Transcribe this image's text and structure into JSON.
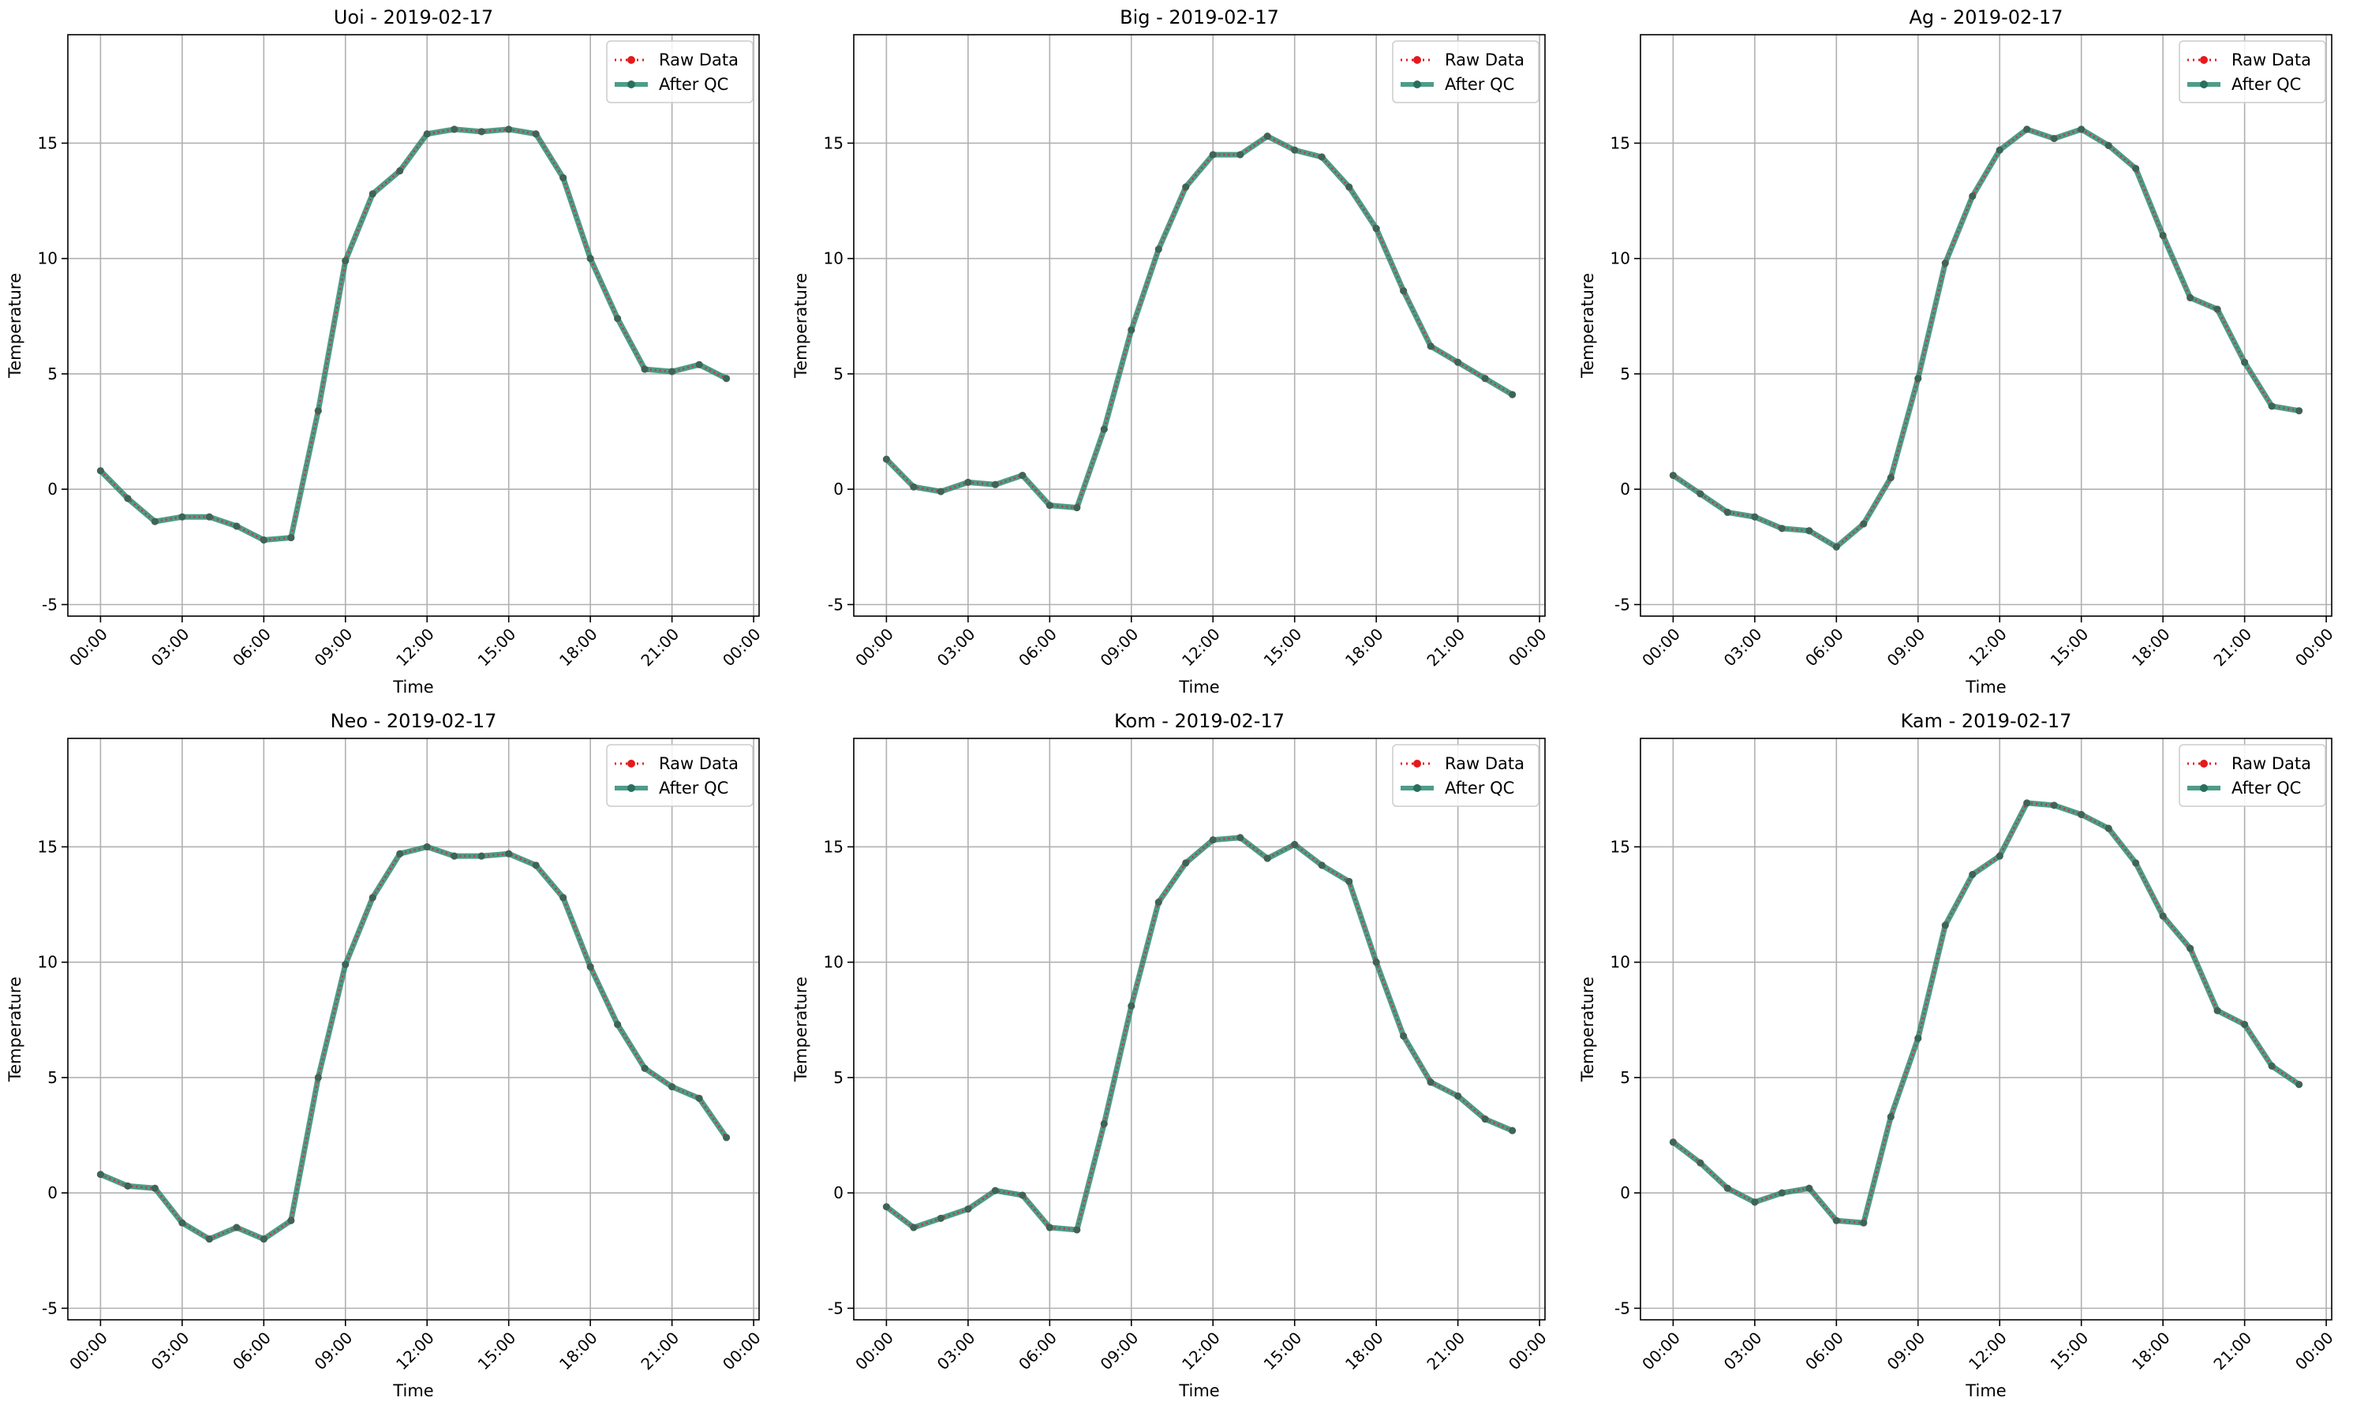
{
  "colors": {
    "raw": "#e41a1c",
    "qc": "#2e8b74",
    "grid": "#b0b0b0",
    "frame": "#000000"
  },
  "legend": {
    "raw_label": "Raw Data",
    "qc_label": "After QC",
    "position": "top-right"
  },
  "chart_data": [
    {
      "type": "line",
      "title": "Uoi - 2019-02-17",
      "xlabel": "Time",
      "ylabel": "Temperature",
      "x_ticks": [
        "00:00",
        "03:00",
        "06:00",
        "09:00",
        "12:00",
        "15:00",
        "18:00",
        "21:00",
        "00:00"
      ],
      "x_range_hours": [
        -1.2,
        24.2
      ],
      "ylim": [
        -5.5,
        19.7
      ],
      "y_ticks": [
        -5,
        0,
        5,
        10,
        15
      ],
      "grid": true,
      "x_hours": [
        0,
        1,
        2,
        3,
        4,
        5,
        6,
        7,
        8,
        9,
        10,
        11,
        12,
        13,
        14,
        15,
        16,
        17,
        18,
        19,
        20,
        21,
        22,
        23
      ],
      "series": [
        {
          "name": "Raw Data",
          "values": [
            0.8,
            -0.4,
            -1.4,
            -1.2,
            -1.2,
            -1.6,
            -2.2,
            -2.1,
            3.4,
            9.9,
            12.8,
            13.8,
            15.4,
            15.6,
            15.5,
            15.6,
            15.4,
            13.5,
            10.0,
            7.4,
            5.2,
            5.1,
            5.4,
            4.8
          ]
        },
        {
          "name": "After QC",
          "values": [
            0.8,
            -0.4,
            -1.4,
            -1.2,
            -1.2,
            -1.6,
            -2.2,
            -2.1,
            3.4,
            9.9,
            12.8,
            13.8,
            15.4,
            15.6,
            15.5,
            15.6,
            15.4,
            13.5,
            10.0,
            7.4,
            5.2,
            5.1,
            5.4,
            4.8
          ]
        }
      ]
    },
    {
      "type": "line",
      "title": "Big - 2019-02-17",
      "xlabel": "Time",
      "ylabel": "Temperature",
      "x_ticks": [
        "00:00",
        "03:00",
        "06:00",
        "09:00",
        "12:00",
        "15:00",
        "18:00",
        "21:00",
        "00:00"
      ],
      "x_range_hours": [
        -1.2,
        24.2
      ],
      "ylim": [
        -5.5,
        19.7
      ],
      "y_ticks": [
        -5,
        0,
        5,
        10,
        15
      ],
      "grid": true,
      "x_hours": [
        0,
        1,
        2,
        3,
        4,
        5,
        6,
        7,
        8,
        9,
        10,
        11,
        12,
        13,
        14,
        15,
        16,
        17,
        18,
        19,
        20,
        21,
        22,
        23
      ],
      "series": [
        {
          "name": "Raw Data",
          "values": [
            1.3,
            0.1,
            -0.1,
            0.3,
            0.2,
            0.6,
            -0.7,
            -0.8,
            2.6,
            6.9,
            10.4,
            13.1,
            14.5,
            14.5,
            15.3,
            14.7,
            14.4,
            13.1,
            11.3,
            8.6,
            6.2,
            5.5,
            4.8,
            4.1
          ]
        },
        {
          "name": "After QC",
          "values": [
            1.3,
            0.1,
            -0.1,
            0.3,
            0.2,
            0.6,
            -0.7,
            -0.8,
            2.6,
            6.9,
            10.4,
            13.1,
            14.5,
            14.5,
            15.3,
            14.7,
            14.4,
            13.1,
            11.3,
            8.6,
            6.2,
            5.5,
            4.8,
            4.1
          ]
        }
      ]
    },
    {
      "type": "line",
      "title": "Ag - 2019-02-17",
      "xlabel": "Time",
      "ylabel": "Temperature",
      "x_ticks": [
        "00:00",
        "03:00",
        "06:00",
        "09:00",
        "12:00",
        "15:00",
        "18:00",
        "21:00",
        "00:00"
      ],
      "x_range_hours": [
        -1.2,
        24.2
      ],
      "ylim": [
        -5.5,
        19.7
      ],
      "y_ticks": [
        -5,
        0,
        5,
        10,
        15
      ],
      "grid": true,
      "x_hours": [
        0,
        1,
        2,
        3,
        4,
        5,
        6,
        7,
        8,
        9,
        10,
        11,
        12,
        13,
        14,
        15,
        16,
        17,
        18,
        19,
        20,
        21,
        22,
        23
      ],
      "series": [
        {
          "name": "Raw Data",
          "values": [
            0.6,
            -0.2,
            -1.0,
            -1.2,
            -1.7,
            -1.8,
            -2.5,
            -1.5,
            0.5,
            4.8,
            9.8,
            12.7,
            14.7,
            15.6,
            15.2,
            15.6,
            14.9,
            13.9,
            11.0,
            8.3,
            7.8,
            5.5,
            3.6,
            3.4
          ]
        },
        {
          "name": "After QC",
          "values": [
            0.6,
            -0.2,
            -1.0,
            -1.2,
            -1.7,
            -1.8,
            -2.5,
            -1.5,
            0.5,
            4.8,
            9.8,
            12.7,
            14.7,
            15.6,
            15.2,
            15.6,
            14.9,
            13.9,
            11.0,
            8.3,
            7.8,
            5.5,
            3.6,
            3.4
          ]
        }
      ]
    },
    {
      "type": "line",
      "title": "Neo - 2019-02-17",
      "xlabel": "Time",
      "ylabel": "Temperature",
      "x_ticks": [
        "00:00",
        "03:00",
        "06:00",
        "09:00",
        "12:00",
        "15:00",
        "18:00",
        "21:00",
        "00:00"
      ],
      "x_range_hours": [
        -1.2,
        24.2
      ],
      "ylim": [
        -5.5,
        19.7
      ],
      "y_ticks": [
        -5,
        0,
        5,
        10,
        15
      ],
      "grid": true,
      "x_hours": [
        0,
        1,
        2,
        3,
        4,
        5,
        6,
        7,
        8,
        9,
        10,
        11,
        12,
        13,
        14,
        15,
        16,
        17,
        18,
        19,
        20,
        21,
        22,
        23
      ],
      "series": [
        {
          "name": "Raw Data",
          "values": [
            0.8,
            0.3,
            0.2,
            -1.3,
            -2.0,
            -1.5,
            -2.0,
            -1.2,
            5.0,
            9.9,
            12.8,
            14.7,
            15.0,
            14.6,
            14.6,
            14.7,
            14.2,
            12.8,
            9.8,
            7.3,
            5.4,
            4.6,
            4.1,
            2.4
          ]
        },
        {
          "name": "After QC",
          "values": [
            0.8,
            0.3,
            0.2,
            -1.3,
            -2.0,
            -1.5,
            -2.0,
            -1.2,
            5.0,
            9.9,
            12.8,
            14.7,
            15.0,
            14.6,
            14.6,
            14.7,
            14.2,
            12.8,
            9.8,
            7.3,
            5.4,
            4.6,
            4.1,
            2.4
          ]
        }
      ]
    },
    {
      "type": "line",
      "title": "Kom - 2019-02-17",
      "xlabel": "Time",
      "ylabel": "Temperature",
      "x_ticks": [
        "00:00",
        "03:00",
        "06:00",
        "09:00",
        "12:00",
        "15:00",
        "18:00",
        "21:00",
        "00:00"
      ],
      "x_range_hours": [
        -1.2,
        24.2
      ],
      "ylim": [
        -5.5,
        19.7
      ],
      "y_ticks": [
        -5,
        0,
        5,
        10,
        15
      ],
      "grid": true,
      "x_hours": [
        0,
        1,
        2,
        3,
        4,
        5,
        6,
        7,
        8,
        9,
        10,
        11,
        12,
        13,
        14,
        15,
        16,
        17,
        18,
        19,
        20,
        21,
        22,
        23
      ],
      "series": [
        {
          "name": "Raw Data",
          "values": [
            -0.6,
            -1.5,
            -1.1,
            -0.7,
            0.1,
            -0.1,
            -1.5,
            -1.6,
            3.0,
            8.1,
            12.6,
            14.3,
            15.3,
            15.4,
            14.5,
            15.1,
            14.2,
            13.5,
            10.0,
            6.8,
            4.8,
            4.2,
            3.2,
            2.7
          ]
        },
        {
          "name": "After QC",
          "values": [
            -0.6,
            -1.5,
            -1.1,
            -0.7,
            0.1,
            -0.1,
            -1.5,
            -1.6,
            3.0,
            8.1,
            12.6,
            14.3,
            15.3,
            15.4,
            14.5,
            15.1,
            14.2,
            13.5,
            10.0,
            6.8,
            4.8,
            4.2,
            3.2,
            2.7
          ]
        }
      ]
    },
    {
      "type": "line",
      "title": "Kam - 2019-02-17",
      "xlabel": "Time",
      "ylabel": "Temperature",
      "x_ticks": [
        "00:00",
        "03:00",
        "06:00",
        "09:00",
        "12:00",
        "15:00",
        "18:00",
        "21:00",
        "00:00"
      ],
      "x_range_hours": [
        -1.2,
        24.2
      ],
      "ylim": [
        -5.5,
        19.7
      ],
      "y_ticks": [
        -5,
        0,
        5,
        10,
        15
      ],
      "grid": true,
      "x_hours": [
        0,
        1,
        2,
        3,
        4,
        5,
        6,
        7,
        8,
        9,
        10,
        11,
        12,
        13,
        14,
        15,
        16,
        17,
        18,
        19,
        20,
        21,
        22,
        23
      ],
      "series": [
        {
          "name": "Raw Data",
          "values": [
            2.2,
            1.3,
            0.2,
            -0.4,
            0.0,
            0.2,
            -1.2,
            -1.3,
            3.3,
            6.7,
            11.6,
            13.8,
            14.6,
            16.9,
            16.8,
            16.4,
            15.8,
            14.3,
            12.0,
            10.6,
            7.9,
            7.3,
            5.5,
            4.7
          ]
        },
        {
          "name": "After QC",
          "values": [
            2.2,
            1.3,
            0.2,
            -0.4,
            0.0,
            0.2,
            -1.2,
            -1.3,
            3.3,
            6.7,
            11.6,
            13.8,
            14.6,
            16.9,
            16.8,
            16.4,
            15.8,
            14.3,
            12.0,
            10.6,
            7.9,
            7.3,
            5.5,
            4.7
          ]
        }
      ]
    }
  ]
}
